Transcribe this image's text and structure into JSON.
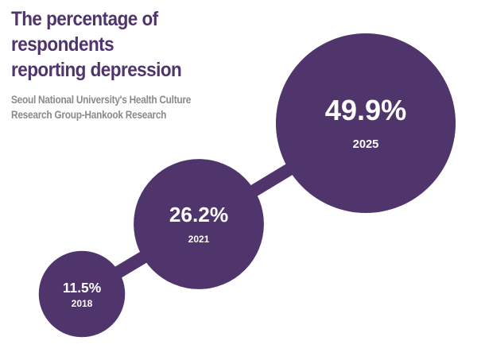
{
  "chart_data": {
    "type": "bubble",
    "title": "The percentage of respondents reporting depression",
    "subtitle": "Seoul National University's Health Culture Research Group-Hankook Research",
    "categories": [
      "2018",
      "2021",
      "2025"
    ],
    "values": [
      11.5,
      26.2,
      49.9
    ],
    "value_labels": [
      "11.5%",
      "26.2%",
      "49.9%"
    ],
    "color": "#4f356c"
  }
}
